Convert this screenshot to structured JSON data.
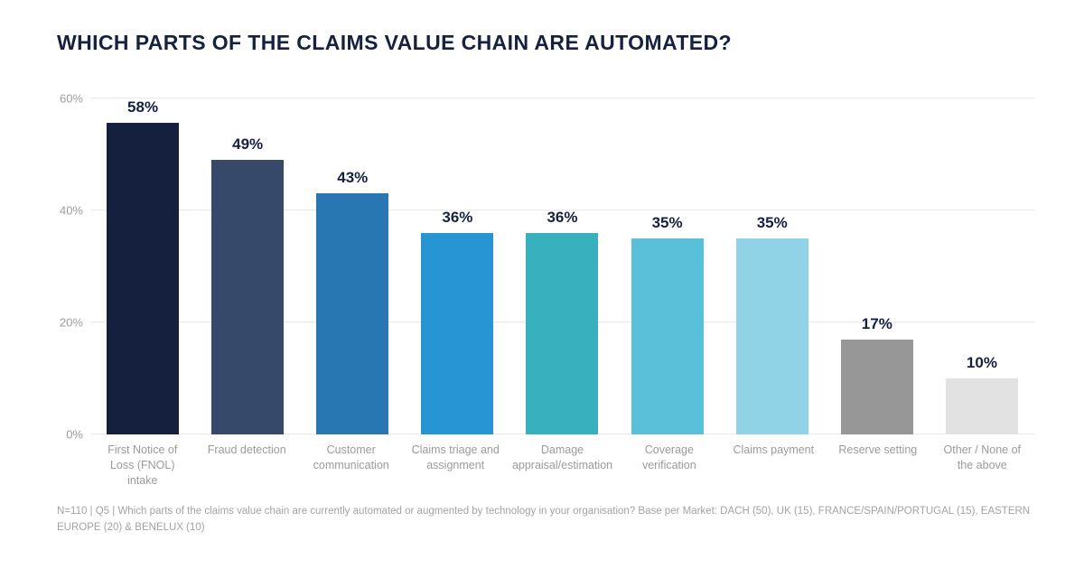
{
  "title": "WHICH PARTS OF THE CLAIMS VALUE CHAIN ARE AUTOMATED?",
  "footnote": "N=110 | Q5 | Which parts of the claims value chain are currently automated or augmented by technology in your organisation? Base per Market: DACH (50), UK (15), FRANCE/SPAIN/PORTUGAL (15), EASTERN EUROPE (20) & BENELUX (10)",
  "colors": {
    "title_text": "#15213f",
    "value_label_text": "#15213f",
    "axis_text": "#9e9e9e",
    "x_label_text": "#9b9b9b",
    "gridline": "#e9e9e9",
    "background": "#ffffff"
  },
  "chart_data": {
    "type": "bar",
    "title": "WHICH PARTS OF THE CLAIMS VALUE CHAIN ARE AUTOMATED?",
    "categories": [
      "First Notice of Loss (FNOL) intake",
      "Fraud detection",
      "Customer communication",
      "Claims triage and assignment",
      "Damage appraisal/estimation",
      "Coverage verification",
      "Claims payment",
      "Reserve setting",
      "Other / None of the above"
    ],
    "values": [
      58,
      49,
      43,
      36,
      36,
      35,
      35,
      17,
      10
    ],
    "value_labels": [
      "58%",
      "49%",
      "43%",
      "36%",
      "36%",
      "35%",
      "35%",
      "17%",
      "10%"
    ],
    "bar_colors": [
      "#14203e",
      "#36496b",
      "#2877b3",
      "#2695d1",
      "#38b0bd",
      "#5abfd9",
      "#90d3e6",
      "#979797",
      "#e2e2e2"
    ],
    "xlabel": "",
    "ylabel": "",
    "ylim": [
      0,
      60
    ],
    "yticks": [
      0,
      20,
      40,
      60
    ],
    "ytick_suffix": "%",
    "grid": true,
    "legend": "none",
    "value_labels_position": "above-bars"
  }
}
